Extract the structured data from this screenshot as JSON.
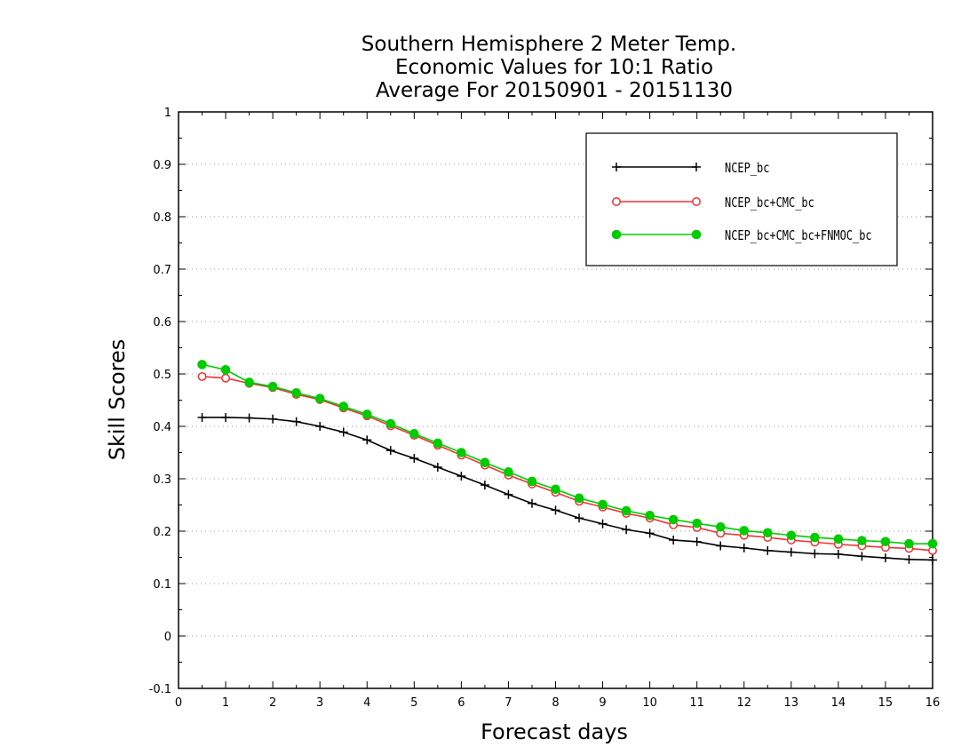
{
  "chart_data": {
    "type": "line",
    "title": [
      "Southern Hemisphere 2 Meter Temp.",
      "Economic Values for 10:1 Ratio",
      "Average For 20150901 - 20151130"
    ],
    "xlabel": "Forecast days",
    "ylabel": "Skill Scores",
    "xlim": [
      0,
      16
    ],
    "ylim": [
      -0.1,
      1
    ],
    "x_ticks": [
      "0",
      "1",
      "2",
      "3",
      "4",
      "5",
      "6",
      "7",
      "8",
      "9",
      "10",
      "11",
      "12",
      "13",
      "14",
      "15",
      "16"
    ],
    "y_ticks": [
      "-0.1",
      "0",
      "0.1",
      "0.2",
      "0.3",
      "0.4",
      "0.5",
      "0.6",
      "0.7",
      "0.8",
      "0.9",
      "1"
    ],
    "grid": "horizontal dotted",
    "legend_position": "top-right",
    "x": [
      0.5,
      1,
      1.5,
      2,
      2.5,
      3,
      3.5,
      4,
      4.5,
      5,
      5.5,
      6,
      6.5,
      7,
      7.5,
      8,
      8.5,
      9,
      9.5,
      10,
      10.5,
      11,
      11.5,
      12,
      12.5,
      13,
      13.5,
      14,
      14.5,
      15,
      15.5,
      16
    ],
    "series": [
      {
        "name": "NCEP_bc",
        "color": "#000000",
        "marker": "plus",
        "values": [
          0.417,
          0.417,
          0.416,
          0.414,
          0.409,
          0.4,
          0.389,
          0.374,
          0.354,
          0.339,
          0.322,
          0.305,
          0.288,
          0.27,
          0.253,
          0.24,
          0.225,
          0.214,
          0.203,
          0.196,
          0.183,
          0.18,
          0.172,
          0.168,
          0.163,
          0.16,
          0.157,
          0.156,
          0.152,
          0.149,
          0.146,
          0.145
        ]
      },
      {
        "name": "NCEP_bc+CMC_bc",
        "color": "#ee3333",
        "marker": "open-circle",
        "values": [
          0.495,
          0.492,
          0.482,
          0.474,
          0.461,
          0.451,
          0.435,
          0.42,
          0.401,
          0.383,
          0.364,
          0.345,
          0.326,
          0.307,
          0.29,
          0.274,
          0.257,
          0.246,
          0.234,
          0.225,
          0.212,
          0.207,
          0.196,
          0.192,
          0.188,
          0.183,
          0.179,
          0.175,
          0.172,
          0.169,
          0.167,
          0.163
        ]
      },
      {
        "name": "NCEP_bc+CMC_bc+FNMOC_bc",
        "color": "#00cc00",
        "marker": "filled-circle",
        "values": [
          0.518,
          0.508,
          0.484,
          0.476,
          0.464,
          0.453,
          0.438,
          0.423,
          0.405,
          0.386,
          0.368,
          0.35,
          0.331,
          0.313,
          0.295,
          0.28,
          0.263,
          0.251,
          0.239,
          0.23,
          0.222,
          0.215,
          0.208,
          0.201,
          0.197,
          0.192,
          0.188,
          0.185,
          0.182,
          0.18,
          0.176,
          0.176
        ]
      }
    ]
  }
}
